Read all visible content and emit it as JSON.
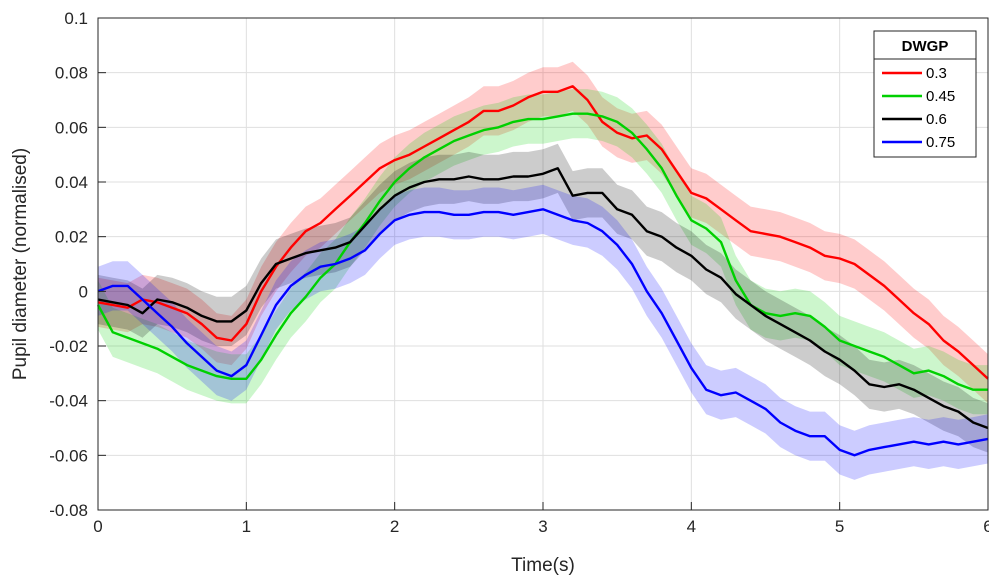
{
  "chart_data": {
    "type": "line",
    "title": "",
    "xlabel": "Time(s)",
    "ylabel": "Pupil diameter (normalised)",
    "xlim": [
      0,
      6
    ],
    "ylim": [
      -0.08,
      0.1
    ],
    "x_ticks": [
      0,
      1,
      2,
      3,
      4,
      5,
      6
    ],
    "x_tick_labels": [
      "0",
      "1",
      "2",
      "3",
      "4",
      "5",
      "6"
    ],
    "y_ticks": [
      -0.08,
      -0.06,
      -0.04,
      -0.02,
      0,
      0.02,
      0.04,
      0.06,
      0.08,
      0.1
    ],
    "y_tick_labels": [
      "-0.08",
      "-0.06",
      "-0.04",
      "-0.02",
      "0",
      "0.02",
      "0.04",
      "0.06",
      "0.08",
      "0.1"
    ],
    "grid": true,
    "shaded_band_halfwidth": 0.009,
    "legend": {
      "title": "DWGP",
      "position": "top-right"
    },
    "x": [
      0,
      0.1,
      0.2,
      0.3,
      0.4,
      0.5,
      0.6,
      0.7,
      0.8,
      0.9,
      1.0,
      1.1,
      1.2,
      1.3,
      1.4,
      1.5,
      1.6,
      1.7,
      1.8,
      1.9,
      2.0,
      2.1,
      2.2,
      2.3,
      2.4,
      2.5,
      2.6,
      2.7,
      2.8,
      2.9,
      3.0,
      3.1,
      3.2,
      3.3,
      3.4,
      3.5,
      3.6,
      3.7,
      3.8,
      3.9,
      4.0,
      4.1,
      4.2,
      4.3,
      4.4,
      4.5,
      4.6,
      4.7,
      4.8,
      4.9,
      5.0,
      5.1,
      5.2,
      5.3,
      5.4,
      5.5,
      5.6,
      5.7,
      5.8,
      5.9,
      6.0
    ],
    "series": [
      {
        "name": "0.3",
        "color": "#ff0000",
        "values": [
          -0.004,
          -0.005,
          -0.006,
          -0.003,
          -0.004,
          -0.006,
          -0.008,
          -0.012,
          -0.017,
          -0.018,
          -0.012,
          0.0,
          0.009,
          0.016,
          0.022,
          0.025,
          0.03,
          0.035,
          0.04,
          0.045,
          0.048,
          0.05,
          0.053,
          0.056,
          0.059,
          0.062,
          0.066,
          0.066,
          0.068,
          0.071,
          0.073,
          0.073,
          0.075,
          0.07,
          0.062,
          0.058,
          0.056,
          0.057,
          0.052,
          0.044,
          0.036,
          0.034,
          0.03,
          0.026,
          0.022,
          0.021,
          0.02,
          0.018,
          0.016,
          0.013,
          0.012,
          0.01,
          0.006,
          0.002,
          -0.003,
          -0.008,
          -0.012,
          -0.018,
          -0.022,
          -0.027,
          -0.032
        ]
      },
      {
        "name": "0.45",
        "color": "#00d000",
        "values": [
          -0.005,
          -0.015,
          -0.017,
          -0.019,
          -0.021,
          -0.024,
          -0.027,
          -0.029,
          -0.031,
          -0.032,
          -0.032,
          -0.025,
          -0.016,
          -0.008,
          -0.002,
          0.005,
          0.01,
          0.018,
          0.025,
          0.033,
          0.04,
          0.045,
          0.049,
          0.052,
          0.055,
          0.057,
          0.059,
          0.06,
          0.062,
          0.063,
          0.063,
          0.064,
          0.065,
          0.065,
          0.064,
          0.062,
          0.058,
          0.052,
          0.045,
          0.035,
          0.026,
          0.023,
          0.018,
          0.004,
          -0.005,
          -0.008,
          -0.009,
          -0.008,
          -0.009,
          -0.013,
          -0.018,
          -0.02,
          -0.022,
          -0.024,
          -0.027,
          -0.03,
          -0.029,
          -0.031,
          -0.034,
          -0.036,
          -0.036
        ]
      },
      {
        "name": "0.6",
        "color": "#000000",
        "values": [
          -0.003,
          -0.004,
          -0.005,
          -0.008,
          -0.003,
          -0.004,
          -0.006,
          -0.009,
          -0.011,
          -0.011,
          -0.007,
          0.003,
          0.01,
          0.012,
          0.014,
          0.015,
          0.016,
          0.018,
          0.024,
          0.03,
          0.035,
          0.038,
          0.04,
          0.041,
          0.041,
          0.042,
          0.041,
          0.041,
          0.042,
          0.042,
          0.043,
          0.045,
          0.035,
          0.036,
          0.036,
          0.03,
          0.028,
          0.022,
          0.02,
          0.016,
          0.013,
          0.008,
          0.005,
          -0.001,
          -0.005,
          -0.009,
          -0.012,
          -0.015,
          -0.018,
          -0.022,
          -0.025,
          -0.029,
          -0.034,
          -0.035,
          -0.034,
          -0.036,
          -0.039,
          -0.042,
          -0.044,
          -0.048,
          -0.05
        ]
      },
      {
        "name": "0.75",
        "color": "#0000ff",
        "values": [
          0.0,
          0.002,
          0.002,
          -0.003,
          -0.008,
          -0.013,
          -0.019,
          -0.024,
          -0.029,
          -0.031,
          -0.027,
          -0.016,
          -0.005,
          0.002,
          0.006,
          0.009,
          0.01,
          0.012,
          0.015,
          0.021,
          0.026,
          0.028,
          0.029,
          0.029,
          0.028,
          0.028,
          0.029,
          0.029,
          0.028,
          0.029,
          0.03,
          0.028,
          0.026,
          0.025,
          0.022,
          0.017,
          0.01,
          0.0,
          -0.008,
          -0.018,
          -0.028,
          -0.036,
          -0.038,
          -0.037,
          -0.04,
          -0.043,
          -0.048,
          -0.051,
          -0.053,
          -0.053,
          -0.058,
          -0.06,
          -0.058,
          -0.057,
          -0.056,
          -0.055,
          -0.056,
          -0.055,
          -0.056,
          -0.055,
          -0.054
        ]
      }
    ]
  }
}
